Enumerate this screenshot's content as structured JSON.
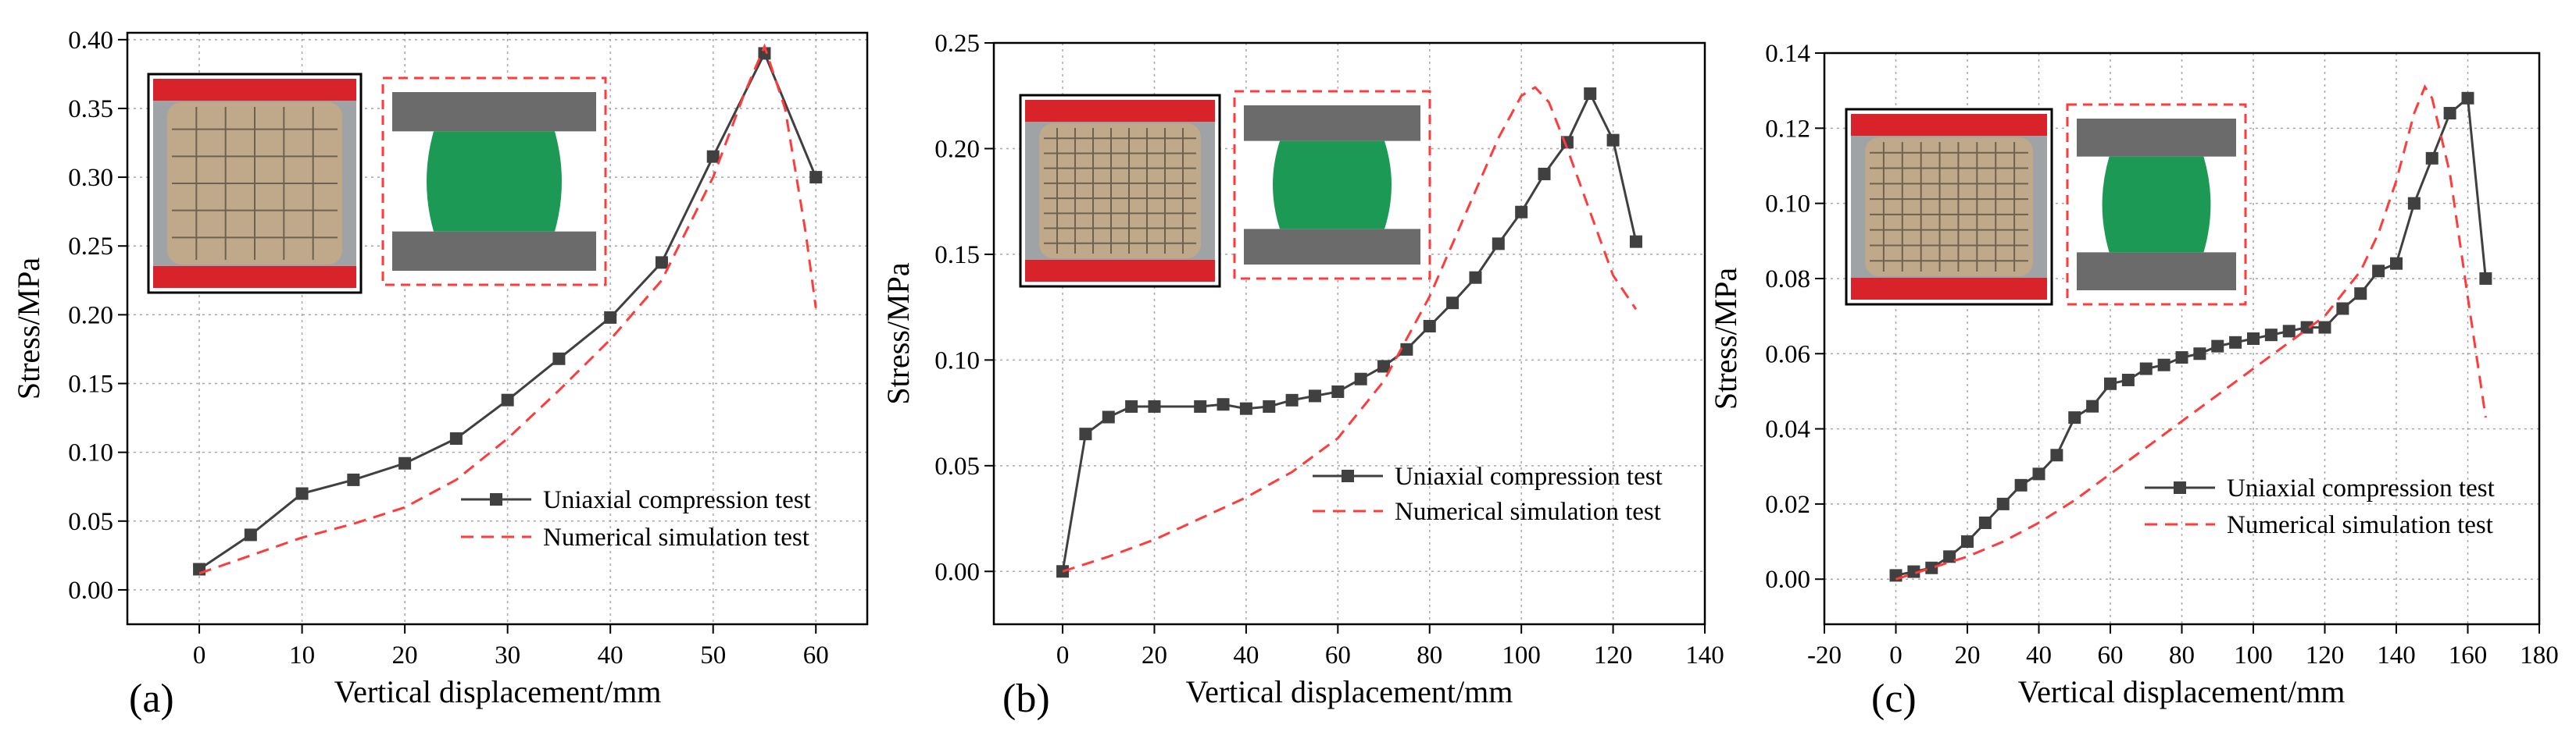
{
  "colors": {
    "test_series": "#404040",
    "simulation_series": "#ff3b3b",
    "grid": "#a8a8a8",
    "sample_green": "#1c9a55",
    "plate_grey": "#6b6b6b",
    "machine_red": "#d9232a",
    "bag_beige": "#bfa98a"
  },
  "chart_data": [
    {
      "type": "line",
      "panel_label": "(a)",
      "xlabel": "Vertical displacement/mm",
      "ylabel": "Stress/MPa",
      "xlim": [
        -7,
        65
      ],
      "ylim": [
        -0.025,
        0.405
      ],
      "xticks": [
        0,
        10,
        20,
        30,
        40,
        50,
        60
      ],
      "yticks": [
        0.0,
        0.05,
        0.1,
        0.15,
        0.2,
        0.25,
        0.3,
        0.35,
        0.4
      ],
      "ytick_labels": [
        "0.00",
        "0.05",
        "0.10",
        "0.15",
        "0.20",
        "0.25",
        "0.30",
        "0.35",
        "0.40"
      ],
      "grid": true,
      "legend_position": "bottom-right",
      "series": [
        {
          "name": "Uniaxial compression test",
          "style": "solid-square",
          "x": [
            0,
            5,
            10,
            15,
            20,
            25,
            30,
            35,
            40,
            45,
            50,
            55,
            60
          ],
          "y": [
            0.015,
            0.04,
            0.07,
            0.08,
            0.092,
            0.11,
            0.138,
            0.168,
            0.198,
            0.238,
            0.315,
            0.39,
            0.3
          ]
        },
        {
          "name": "Numerical simulation test",
          "style": "dashed",
          "x": [
            0,
            5,
            10,
            15,
            20,
            25,
            30,
            35,
            40,
            45,
            50,
            53,
            55,
            57,
            59,
            60
          ],
          "y": [
            0.012,
            0.025,
            0.038,
            0.048,
            0.06,
            0.08,
            0.11,
            0.145,
            0.182,
            0.225,
            0.3,
            0.36,
            0.395,
            0.35,
            0.26,
            0.205
          ]
        }
      ]
    },
    {
      "type": "line",
      "panel_label": "(b)",
      "xlabel": "Vertical displacement/mm",
      "ylabel": "Stress/MPa",
      "xlim": [
        -15,
        140
      ],
      "ylim": [
        -0.025,
        0.25
      ],
      "xticks": [
        0,
        20,
        40,
        60,
        80,
        100,
        120,
        140
      ],
      "yticks": [
        0.0,
        0.05,
        0.1,
        0.15,
        0.2,
        0.25
      ],
      "ytick_labels": [
        "0.00",
        "0.05",
        "0.10",
        "0.15",
        "0.20",
        "0.25"
      ],
      "grid": true,
      "legend_position": "center-right",
      "series": [
        {
          "name": "Uniaxial compression test",
          "style": "solid-square",
          "x": [
            0,
            5,
            10,
            15,
            20,
            30,
            35,
            40,
            45,
            50,
            55,
            60,
            65,
            70,
            75,
            80,
            85,
            90,
            95,
            100,
            105,
            110,
            115,
            120,
            125
          ],
          "y": [
            0.0,
            0.065,
            0.073,
            0.078,
            0.078,
            0.078,
            0.079,
            0.077,
            0.078,
            0.081,
            0.083,
            0.085,
            0.091,
            0.097,
            0.105,
            0.116,
            0.127,
            0.139,
            0.155,
            0.17,
            0.188,
            0.203,
            0.226,
            0.204,
            0.156
          ]
        },
        {
          "name": "Numerical simulation test",
          "style": "dashed",
          "x": [
            0,
            10,
            20,
            30,
            40,
            50,
            60,
            70,
            80,
            90,
            95,
            100,
            103,
            106,
            110,
            115,
            120,
            125
          ],
          "y": [
            0.0,
            0.007,
            0.015,
            0.025,
            0.035,
            0.047,
            0.063,
            0.09,
            0.13,
            0.18,
            0.205,
            0.225,
            0.229,
            0.222,
            0.2,
            0.17,
            0.14,
            0.124
          ]
        }
      ]
    },
    {
      "type": "line",
      "panel_label": "(c)",
      "xlabel": "Vertical displacement/mm",
      "ylabel": "Stress/MPa",
      "xlim": [
        -20,
        180
      ],
      "ylim": [
        -0.012,
        0.14
      ],
      "xticks": [
        -20,
        0,
        20,
        40,
        60,
        80,
        100,
        120,
        140,
        160,
        180
      ],
      "yticks": [
        0.0,
        0.02,
        0.04,
        0.06,
        0.08,
        0.1,
        0.12,
        0.14
      ],
      "ytick_labels": [
        "0.00",
        "0.02",
        "0.04",
        "0.06",
        "0.08",
        "0.10",
        "0.12",
        "0.14"
      ],
      "grid": true,
      "legend_position": "center-right",
      "series": [
        {
          "name": "Uniaxial compression test",
          "style": "solid-square",
          "x": [
            0,
            5,
            10,
            15,
            20,
            25,
            30,
            35,
            40,
            45,
            50,
            55,
            60,
            65,
            70,
            75,
            80,
            85,
            90,
            95,
            100,
            105,
            110,
            115,
            120,
            125,
            130,
            135,
            140,
            145,
            150,
            155,
            160,
            165
          ],
          "y": [
            0.001,
            0.002,
            0.003,
            0.006,
            0.01,
            0.015,
            0.02,
            0.025,
            0.028,
            0.033,
            0.043,
            0.046,
            0.052,
            0.053,
            0.056,
            0.057,
            0.059,
            0.06,
            0.062,
            0.063,
            0.064,
            0.065,
            0.066,
            0.067,
            0.067,
            0.072,
            0.076,
            0.082,
            0.084,
            0.1,
            0.112,
            0.124,
            0.128,
            0.08
          ]
        },
        {
          "name": "Numerical simulation test",
          "style": "dashed",
          "x": [
            0,
            10,
            20,
            30,
            40,
            50,
            60,
            70,
            80,
            90,
            100,
            110,
            120,
            130,
            135,
            140,
            145,
            148,
            150,
            155,
            160,
            165
          ],
          "y": [
            0.0,
            0.003,
            0.006,
            0.01,
            0.015,
            0.021,
            0.028,
            0.035,
            0.042,
            0.049,
            0.056,
            0.063,
            0.07,
            0.082,
            0.092,
            0.106,
            0.124,
            0.131,
            0.128,
            0.108,
            0.075,
            0.043
          ]
        }
      ]
    }
  ]
}
